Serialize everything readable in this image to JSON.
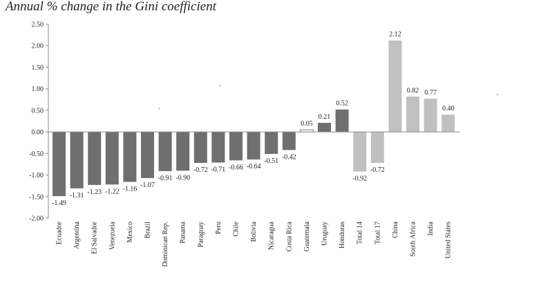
{
  "chart_data": {
    "type": "bar",
    "title": "Annual % change in the Gini coefficient",
    "xlabel": "",
    "ylabel": "",
    "ylim": [
      -2.0,
      2.5
    ],
    "yticks": [
      "2.50",
      "2.00",
      "1.50",
      "1.00",
      "0.50",
      "0.00",
      "-0.50",
      "-1.00",
      "-1.50",
      "-2.00"
    ],
    "grid": false,
    "categories": [
      "Ecuador",
      "Argentina",
      "El Salvador",
      "Venezuela",
      "Mexico",
      "Brazil",
      "Dominican Rep.",
      "Panama",
      "Paraguay",
      "Peru",
      "Chile",
      "Bolivia",
      "Nicaragua",
      "Costa Rica",
      "Guatemala",
      "Uruguay",
      "Honduras",
      "Total 14",
      "Total 17",
      "China",
      "South Africa",
      "India",
      "United States"
    ],
    "values": [
      -1.49,
      -1.31,
      -1.23,
      -1.22,
      -1.16,
      -1.07,
      -0.91,
      -0.9,
      -0.72,
      -0.71,
      -0.66,
      -0.64,
      -0.51,
      -0.42,
      0.05,
      0.21,
      0.52,
      -0.92,
      -0.72,
      2.12,
      0.82,
      0.77,
      0.4
    ],
    "value_labels": [
      "-1.49",
      "-1.31",
      "-1.23",
      "-1.22",
      "-1.16",
      "-1.07",
      "-0.91",
      "-0.90",
      "-0.72",
      "-0.71",
      "-0.66",
      "-0.64",
      "-0.51",
      "-0.42",
      "0.05",
      "0.21",
      "0.52",
      "-0.92",
      "-0.72",
      "2.12",
      "0.82",
      "0.77",
      "0.40"
    ],
    "bar_styles": [
      "dark",
      "dark",
      "dark",
      "dark",
      "dark",
      "dark",
      "dark",
      "dark",
      "dark",
      "dark",
      "dark",
      "dark",
      "dark",
      "dark",
      "outline",
      "dark",
      "dark",
      "light",
      "light",
      "light",
      "light",
      "light",
      "light"
    ]
  },
  "colors": {
    "dark": "#6f6f6f",
    "light": "#c0c0c0",
    "outline_fill": "#ffffff",
    "outline_stroke": "#777777",
    "axis": "#8a8a8a"
  }
}
